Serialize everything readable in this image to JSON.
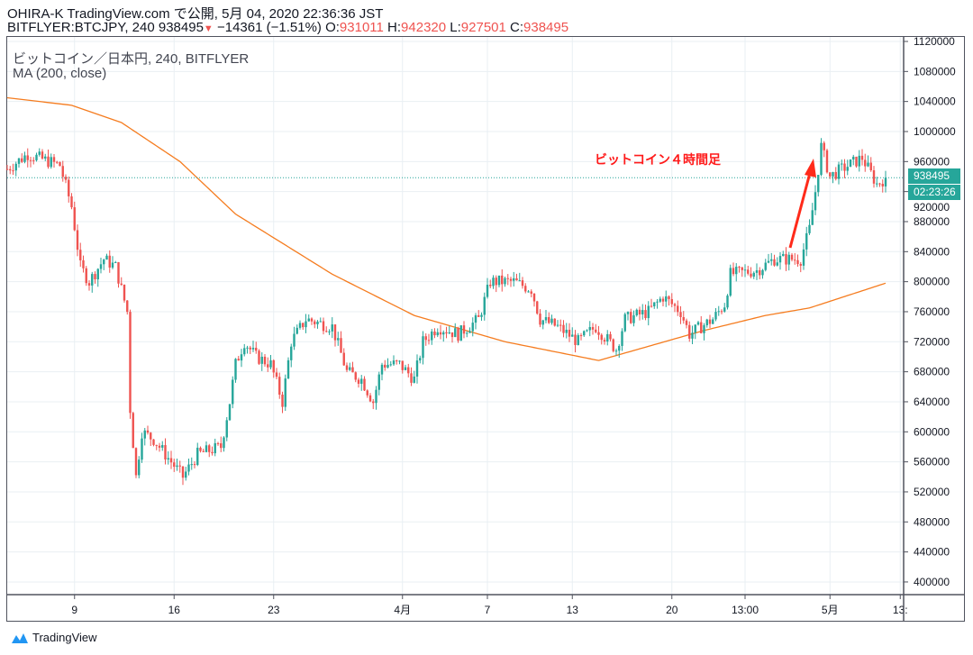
{
  "header": {
    "publisher": "OHIRA-K TradingView.com で公開, 5月 04, 2020 22:36:36 JST",
    "symbol": "BITFLYER:BTCJPY, 240",
    "last": "938495",
    "change": "−14361 (−1.51%)",
    "o_label": "O:",
    "o": "931011",
    "h_label": "H:",
    "h": "942320",
    "l_label": "L:",
    "l": "927501",
    "c_label": "C:",
    "c": "938495"
  },
  "legend": {
    "title": "ビットコイン／日本円, 240, BITFLYER",
    "ma": "MA (200, close)"
  },
  "annotation": "ビットコイン４時間足",
  "price_tag": "938495",
  "countdown": "02:23:26",
  "brand": "TradingView",
  "colors": {
    "up": "#26a69a",
    "down": "#ef5350",
    "ma": "#f57c1f",
    "arrow": "#ff2a1a"
  },
  "chart_data": {
    "type": "candlestick",
    "ylim": [
      390000,
      1125000
    ],
    "yticks": [
      1120000,
      1080000,
      1040000,
      1000000,
      960000,
      920000,
      880000,
      840000,
      800000,
      760000,
      720000,
      680000,
      640000,
      600000,
      560000,
      520000,
      480000,
      440000,
      400000
    ],
    "candle_count": 301,
    "xticks": [
      {
        "i": 23,
        "label": "9"
      },
      {
        "i": 57,
        "label": "16"
      },
      {
        "i": 91,
        "label": "23"
      },
      {
        "i": 135,
        "label": "4月"
      },
      {
        "i": 164,
        "label": "7"
      },
      {
        "i": 193,
        "label": "13"
      },
      {
        "i": 227,
        "label": "20"
      },
      {
        "i": 252,
        "label": "13:00"
      },
      {
        "i": 281,
        "label": "5月"
      },
      {
        "i": 305,
        "label": "13:"
      }
    ],
    "close_path": [
      [
        0,
        950000
      ],
      [
        7,
        970000
      ],
      [
        18,
        955000
      ],
      [
        22,
        900000
      ],
      [
        25,
        820000
      ],
      [
        28,
        800000
      ],
      [
        33,
        830000
      ],
      [
        37,
        820000
      ],
      [
        41,
        760000
      ],
      [
        42,
        630000
      ],
      [
        44,
        540000
      ],
      [
        46,
        600000
      ],
      [
        50,
        590000
      ],
      [
        54,
        570000
      ],
      [
        60,
        540000
      ],
      [
        65,
        570000
      ],
      [
        73,
        580000
      ],
      [
        76,
        640000
      ],
      [
        78,
        690000
      ],
      [
        81,
        720000
      ],
      [
        85,
        700000
      ],
      [
        90,
        690000
      ],
      [
        94,
        640000
      ],
      [
        97,
        720000
      ],
      [
        102,
        750000
      ],
      [
        111,
        740000
      ],
      [
        116,
        680000
      ],
      [
        121,
        670000
      ],
      [
        125,
        640000
      ],
      [
        128,
        690000
      ],
      [
        134,
        690000
      ],
      [
        139,
        670000
      ],
      [
        142,
        720000
      ],
      [
        147,
        740000
      ],
      [
        154,
        730000
      ],
      [
        161,
        750000
      ],
      [
        165,
        800000
      ],
      [
        173,
        800000
      ],
      [
        179,
        790000
      ],
      [
        182,
        750000
      ],
      [
        188,
        740000
      ],
      [
        195,
        720000
      ],
      [
        201,
        740000
      ],
      [
        208,
        710000
      ],
      [
        211,
        750000
      ],
      [
        219,
        760000
      ],
      [
        224,
        780000
      ],
      [
        230,
        760000
      ],
      [
        233,
        730000
      ],
      [
        241,
        750000
      ],
      [
        245,
        770000
      ],
      [
        247,
        810000
      ],
      [
        256,
        815000
      ],
      [
        262,
        830000
      ],
      [
        271,
        830000
      ],
      [
        274,
        870000
      ],
      [
        276,
        920000
      ],
      [
        278,
        980000
      ],
      [
        281,
        940000
      ],
      [
        285,
        950000
      ],
      [
        292,
        965000
      ],
      [
        297,
        930000
      ],
      [
        300,
        938495
      ]
    ],
    "ma_path": [
      [
        0,
        1045000
      ],
      [
        22,
        1035000
      ],
      [
        39,
        1012000
      ],
      [
        59,
        960000
      ],
      [
        78,
        890000
      ],
      [
        111,
        810000
      ],
      [
        139,
        755000
      ],
      [
        170,
        720000
      ],
      [
        202,
        695000
      ],
      [
        238,
        735000
      ],
      [
        259,
        755000
      ],
      [
        274,
        765000
      ],
      [
        300,
        798000
      ]
    ],
    "last_price": 938495
  }
}
